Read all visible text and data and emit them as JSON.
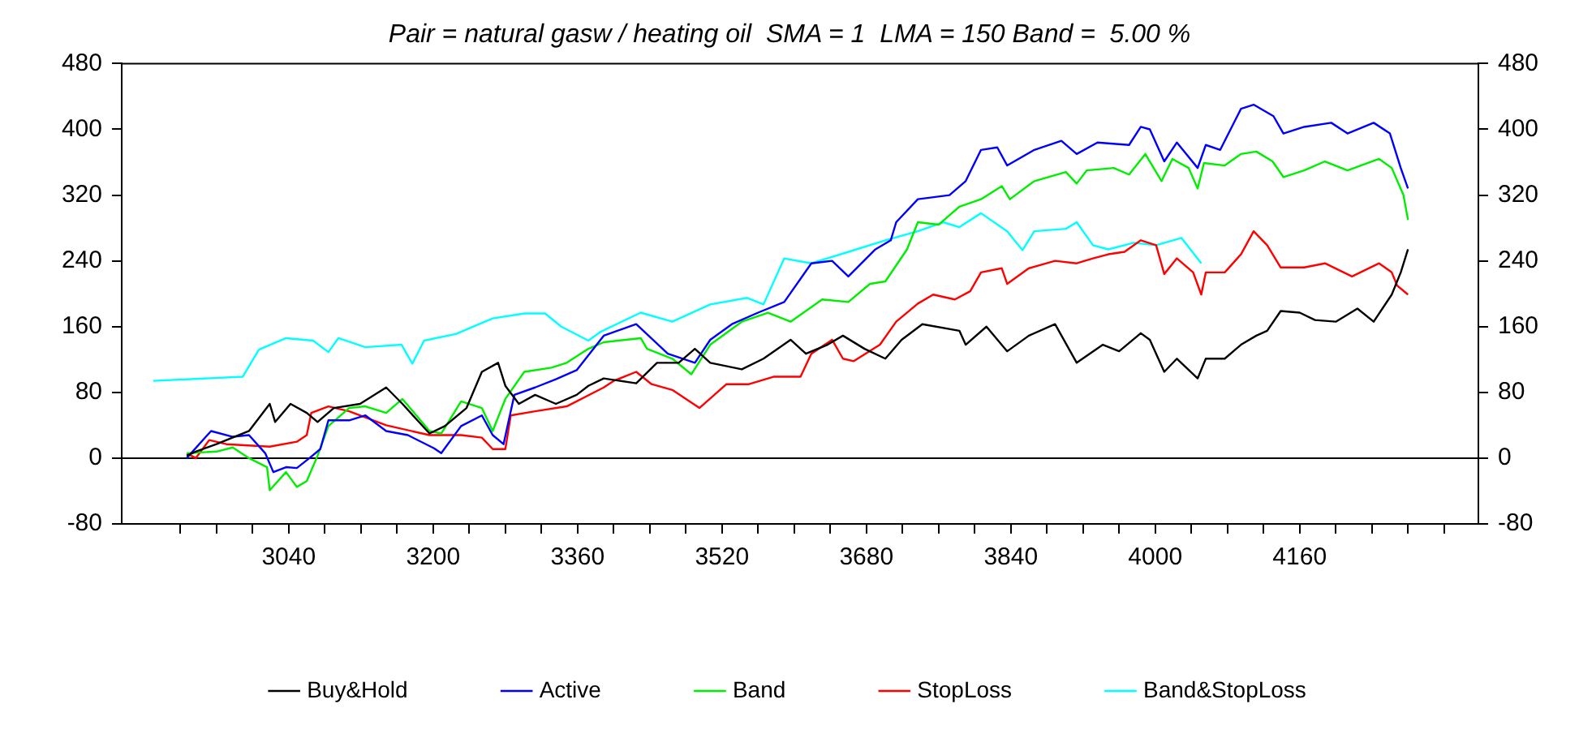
{
  "chart_data": {
    "type": "line",
    "title": "Pair = natural gasw / heating oil  SMA = 1  LMA = 150 Band =  5.00 %",
    "xlim": [
      2855,
      4358
    ],
    "xticks": [
      {
        "value": 2920,
        "label": null
      },
      {
        "value": 2960,
        "label": null
      },
      {
        "value": 3000,
        "label": null
      },
      3040,
      {
        "value": 3080,
        "label": null
      },
      {
        "value": 3120,
        "label": null
      },
      {
        "value": 3160,
        "label": null
      },
      3200,
      {
        "value": 3240,
        "label": null
      },
      {
        "value": 3280,
        "label": null
      },
      {
        "value": 3320,
        "label": null
      },
      3360,
      {
        "value": 3400,
        "label": null
      },
      {
        "value": 3440,
        "label": null
      },
      {
        "value": 3480,
        "label": null
      },
      3520,
      {
        "value": 3560,
        "label": null
      },
      {
        "value": 3600,
        "label": null
      },
      {
        "value": 3640,
        "label": null
      },
      3680,
      {
        "value": 3720,
        "label": null
      },
      {
        "value": 3760,
        "label": null
      },
      {
        "value": 3800,
        "label": null
      },
      3840,
      {
        "value": 3880,
        "label": null
      },
      {
        "value": 3920,
        "label": null
      },
      {
        "value": 3960,
        "label": null
      },
      4000,
      {
        "value": 4040,
        "label": null
      },
      {
        "value": 4080,
        "label": null
      },
      {
        "value": 4120,
        "label": null
      },
      4160,
      {
        "value": 4200,
        "label": null
      },
      {
        "value": 4240,
        "label": null
      },
      {
        "value": 4280,
        "label": null
      },
      {
        "value": 4320,
        "label": null
      }
    ],
    "ylim": [
      -80,
      480
    ],
    "yticks": [
      -80,
      0,
      80,
      160,
      240,
      320,
      400,
      480
    ],
    "y2lim": [
      -80,
      480
    ],
    "y2ticks": [
      -80,
      0,
      80,
      160,
      240,
      320,
      400,
      480
    ],
    "ref_lines": [
      {
        "axis": "y",
        "value": 0,
        "color": "#000000"
      }
    ],
    "grid": false,
    "legend": "bottom",
    "marker": "none",
    "line_style": "solid",
    "series": [
      {
        "name": "Buy&Hold",
        "color": "#000000",
        "x": [
          2927,
          2937,
          2960,
          2996,
          3019,
          3025,
          3042,
          3060,
          3072,
          3090,
          3119,
          3148,
          3166,
          3196,
          3213,
          3237,
          3254,
          3272,
          3280,
          3295,
          3313,
          3336,
          3359,
          3372,
          3389,
          3425,
          3448,
          3472,
          3490,
          3507,
          3542,
          3566,
          3596,
          3613,
          3637,
          3654,
          3678,
          3701,
          3719,
          3742,
          3783,
          3790,
          3813,
          3836,
          3860,
          3889,
          3913,
          3942,
          3960,
          3984,
          3994,
          4010,
          4024,
          4047,
          4056,
          4077,
          4095,
          4112,
          4124,
          4139,
          4160,
          4177,
          4200,
          4224,
          4242,
          4262,
          4272,
          4280
        ],
        "values": [
          3,
          8,
          17,
          33,
          66,
          44,
          66,
          55,
          44,
          61,
          66,
          86,
          66,
          30,
          39,
          61,
          105,
          116,
          88,
          66,
          77,
          66,
          77,
          88,
          97,
          91,
          116,
          116,
          133,
          116,
          108,
          121,
          144,
          127,
          138,
          149,
          133,
          121,
          144,
          163,
          155,
          138,
          160,
          130,
          149,
          163,
          116,
          138,
          130,
          152,
          144,
          105,
          121,
          97,
          121,
          121,
          138,
          149,
          155,
          179,
          177,
          168,
          166,
          182,
          166,
          199,
          226,
          254
        ]
      },
      {
        "name": "Active",
        "color": "#0000ff",
        "x": [
          2927,
          2954,
          2978,
          2996,
          3014,
          3023,
          3037,
          3049,
          3063,
          3075,
          3084,
          3107,
          3125,
          3148,
          3172,
          3201,
          3209,
          3231,
          3254,
          3266,
          3278,
          3290,
          3313,
          3336,
          3359,
          3389,
          3425,
          3460,
          3490,
          3507,
          3531,
          3560,
          3589,
          3619,
          3642,
          3660,
          3690,
          3707,
          3713,
          3737,
          3772,
          3790,
          3807,
          3825,
          3836,
          3866,
          3896,
          3913,
          3936,
          3971,
          3984,
          3994,
          4010,
          4024,
          4047,
          4056,
          4072,
          4095,
          4109,
          4131,
          4142,
          4165,
          4195,
          4213,
          4242,
          4260,
          4272,
          4280
        ],
        "values": [
          0,
          33,
          26,
          28,
          6,
          -17,
          -11,
          -12,
          0,
          11,
          46,
          46,
          52,
          33,
          28,
          12,
          6,
          39,
          52,
          28,
          17,
          77,
          86,
          96,
          107,
          149,
          163,
          127,
          116,
          144,
          163,
          177,
          190,
          237,
          240,
          221,
          254,
          265,
          287,
          315,
          320,
          337,
          375,
          378,
          356,
          375,
          386,
          370,
          384,
          381,
          403,
          400,
          361,
          384,
          353,
          381,
          375,
          425,
          430,
          416,
          395,
          403,
          408,
          395,
          408,
          395,
          353,
          328
        ]
      },
      {
        "name": "Band",
        "color": "#00ee00",
        "x": [
          2927,
          2960,
          2978,
          2996,
          3016,
          3019,
          3037,
          3049,
          3060,
          3072,
          3084,
          3107,
          3125,
          3148,
          3166,
          3196,
          3209,
          3231,
          3254,
          3266,
          3280,
          3301,
          3331,
          3348,
          3372,
          3389,
          3430,
          3437,
          3465,
          3486,
          3507,
          3542,
          3571,
          3596,
          3631,
          3660,
          3684,
          3701,
          3725,
          3737,
          3760,
          3783,
          3807,
          3830,
          3839,
          3866,
          3901,
          3913,
          3924,
          3954,
          3971,
          3989,
          4007,
          4019,
          4037,
          4047,
          4054,
          4077,
          4095,
          4112,
          4130,
          4142,
          4165,
          4188,
          4213,
          4248,
          4262,
          4275,
          4280
        ],
        "values": [
          6,
          8,
          13,
          0,
          -11,
          -39,
          -17,
          -35,
          -28,
          3,
          39,
          61,
          63,
          55,
          72,
          33,
          30,
          69,
          61,
          33,
          72,
          105,
          110,
          116,
          133,
          141,
          146,
          133,
          121,
          102,
          138,
          166,
          177,
          166,
          193,
          190,
          212,
          215,
          254,
          287,
          284,
          306,
          315,
          331,
          315,
          337,
          348,
          334,
          350,
          353,
          345,
          370,
          337,
          364,
          353,
          328,
          359,
          356,
          370,
          373,
          361,
          342,
          350,
          361,
          350,
          364,
          353,
          320,
          290
        ]
      },
      {
        "name": "StopLoss",
        "color": "#ff0000",
        "x": [
          2927,
          2937,
          2952,
          2971,
          3019,
          3049,
          3060,
          3065,
          3084,
          3107,
          3148,
          3196,
          3231,
          3254,
          3266,
          3280,
          3286,
          3313,
          3348,
          3389,
          3400,
          3425,
          3442,
          3465,
          3495,
          3525,
          3550,
          3577,
          3607,
          3619,
          3642,
          3654,
          3666,
          3695,
          3713,
          3737,
          3754,
          3778,
          3795,
          3807,
          3830,
          3836,
          3860,
          3889,
          3913,
          3931,
          3948,
          3966,
          3984,
          4001,
          4010,
          4024,
          4042,
          4051,
          4056,
          4077,
          4095,
          4109,
          4124,
          4139,
          4165,
          4188,
          4218,
          4248,
          4262,
          4268,
          4280
        ],
        "values": [
          6,
          0,
          22,
          17,
          14,
          20,
          28,
          55,
          63,
          57,
          40,
          28,
          28,
          25,
          11,
          11,
          52,
          57,
          63,
          86,
          94,
          105,
          90,
          83,
          61,
          90,
          90,
          99,
          99,
          127,
          144,
          121,
          118,
          138,
          166,
          188,
          199,
          193,
          203,
          226,
          231,
          212,
          231,
          240,
          237,
          243,
          248,
          251,
          265,
          259,
          224,
          243,
          226,
          199,
          226,
          226,
          248,
          276,
          259,
          232,
          232,
          237,
          221,
          237,
          226,
          210,
          199
        ]
      },
      {
        "name": "Band&StopLoss",
        "color": "#00ffff",
        "x": [
          2890,
          2989,
          3007,
          3037,
          3067,
          3084,
          3095,
          3125,
          3165,
          3177,
          3190,
          3225,
          3266,
          3301,
          3324,
          3342,
          3372,
          3386,
          3430,
          3465,
          3507,
          3548,
          3566,
          3589,
          3619,
          3666,
          3701,
          3737,
          3765,
          3783,
          3807,
          3836,
          3853,
          3866,
          3901,
          3913,
          3931,
          3948,
          3976,
          4001,
          4029,
          4051
        ],
        "values": [
          94,
          99,
          132,
          146,
          143,
          129,
          146,
          135,
          138,
          115,
          143,
          151,
          170,
          176,
          176,
          160,
          143,
          154,
          177,
          166,
          187,
          195,
          187,
          243,
          237,
          253,
          265,
          276,
          287,
          281,
          298,
          276,
          253,
          276,
          279,
          287,
          259,
          254,
          262,
          259,
          268,
          237
        ]
      }
    ]
  }
}
